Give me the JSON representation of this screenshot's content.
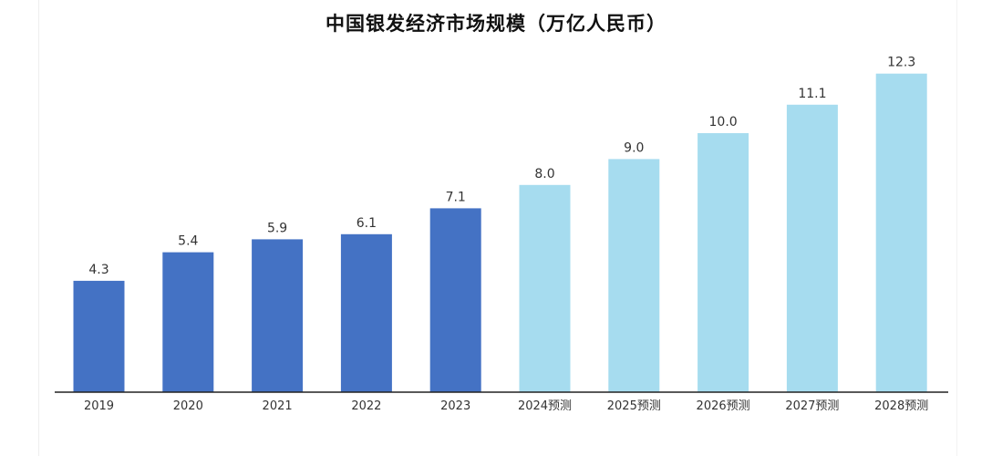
{
  "chart_data": {
    "type": "bar",
    "title": "中国银发经济市场规模（万亿人民币）",
    "categories": [
      "2019",
      "2020",
      "2021",
      "2022",
      "2023",
      "2024预测",
      "2025预测",
      "2026预测",
      "2027预测",
      "2028预测"
    ],
    "values": [
      4.3,
      5.4,
      5.9,
      6.1,
      7.1,
      8.0,
      9.0,
      10.0,
      11.1,
      12.3
    ],
    "value_labels": [
      "4.3",
      "5.4",
      "5.9",
      "6.1",
      "7.1",
      "8.0",
      "9.0",
      "10.0",
      "11.1",
      "12.3"
    ],
    "bar_colors": [
      "#4472c4",
      "#4472c4",
      "#4472c4",
      "#4472c4",
      "#4472c4",
      "#a6dcef",
      "#a6dcef",
      "#a6dcef",
      "#a6dcef",
      "#a6dcef"
    ],
    "xlabel": "",
    "ylabel": "",
    "ylim": [
      0,
      13
    ],
    "grid": false,
    "legend": "none"
  }
}
